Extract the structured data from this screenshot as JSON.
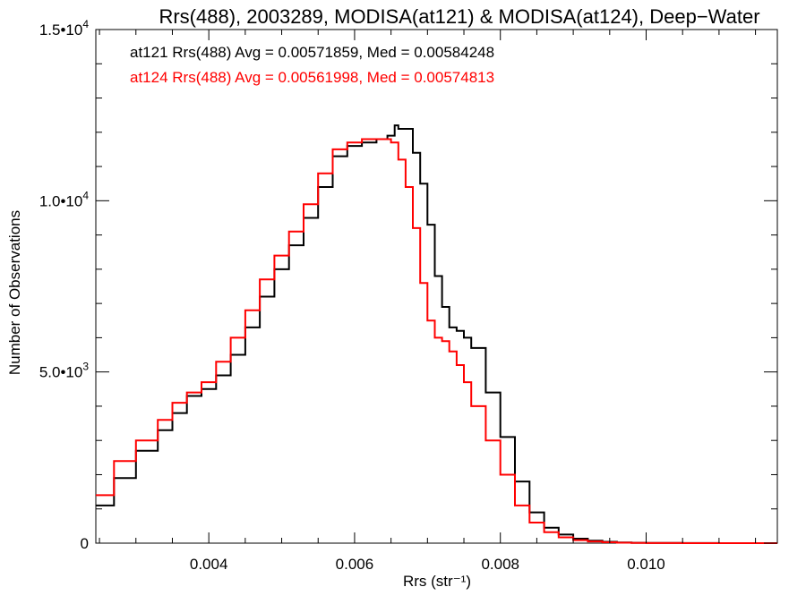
{
  "chart_data": {
    "type": "line",
    "title": "Rrs(488), 2003289, MODISA(at121) & MODISA(at124), Deep−Water",
    "xlabel": "Rrs (str⁻¹)",
    "ylabel": "Number of Observations",
    "xlim": [
      0.00245,
      0.0118
    ],
    "ylim": [
      0,
      15000
    ],
    "x_ticks": [
      {
        "value": 0.004,
        "label": "0.004"
      },
      {
        "value": 0.006,
        "label": "0.006"
      },
      {
        "value": 0.008,
        "label": "0.008"
      },
      {
        "value": 0.01,
        "label": "0.010"
      }
    ],
    "y_ticks": [
      {
        "value": 0,
        "mant": "0",
        "exp": ""
      },
      {
        "value": 5000,
        "mant": "5.0•10",
        "exp": "3"
      },
      {
        "value": 10000,
        "mant": "1.0•10",
        "exp": "4"
      },
      {
        "value": 15000,
        "mant": "1.5•10",
        "exp": "4"
      }
    ],
    "y_minor_ticks": [
      1000,
      2000,
      3000,
      4000,
      6000,
      7000,
      8000,
      9000,
      11000,
      12000,
      13000,
      14000
    ],
    "x_minor_ticks": [
      0.0025,
      0.003,
      0.0035,
      0.0045,
      0.005,
      0.0055,
      0.0065,
      0.007,
      0.0075,
      0.0085,
      0.009,
      0.0095,
      0.0105,
      0.011,
      0.0115
    ],
    "legend": [
      {
        "label": "at121 Rrs(488) Avg = 0.00571859, Med = 0.00584248",
        "color": "#000000"
      },
      {
        "label": "at124 Rrs(488) Avg = 0.00561998, Med = 0.00574813",
        "color": "#ff0000"
      }
    ],
    "series": [
      {
        "color": "#000000",
        "x": [
          0.00245,
          0.0027,
          0.003,
          0.0033,
          0.0035,
          0.0037,
          0.0039,
          0.0041,
          0.0043,
          0.0045,
          0.0047,
          0.0049,
          0.0051,
          0.0053,
          0.0055,
          0.0057,
          0.0059,
          0.0061,
          0.0063,
          0.00645,
          0.00655,
          0.0066,
          0.0068,
          0.0069,
          0.007,
          0.0071,
          0.0072,
          0.0073,
          0.0074,
          0.0075,
          0.0076,
          0.0078,
          0.008,
          0.0082,
          0.0084,
          0.0086,
          0.0088,
          0.009,
          0.0092,
          0.0094,
          0.0096,
          0.0098,
          0.01,
          0.0105,
          0.011,
          0.0118
        ],
        "y": [
          1100,
          1900,
          2700,
          3300,
          3800,
          4300,
          4500,
          4900,
          5500,
          6300,
          7200,
          8000,
          8700,
          9500,
          10400,
          11300,
          11600,
          11700,
          11800,
          11900,
          12200,
          12100,
          11400,
          10500,
          9300,
          7800,
          6900,
          6300,
          6200,
          6000,
          5700,
          4400,
          3100,
          1800,
          900,
          450,
          250,
          130,
          70,
          40,
          20,
          10,
          5,
          2,
          1,
          0
        ]
      },
      {
        "color": "#ff0000",
        "x": [
          0.00245,
          0.0027,
          0.003,
          0.0033,
          0.0035,
          0.0037,
          0.0039,
          0.0041,
          0.0043,
          0.0045,
          0.0047,
          0.0049,
          0.0051,
          0.0053,
          0.0055,
          0.0057,
          0.0059,
          0.0061,
          0.0063,
          0.0065,
          0.0066,
          0.0067,
          0.0068,
          0.0069,
          0.007,
          0.0071,
          0.0072,
          0.0073,
          0.0074,
          0.0075,
          0.0076,
          0.0078,
          0.008,
          0.0082,
          0.0084,
          0.0086,
          0.0088,
          0.009,
          0.0092,
          0.0094,
          0.0096,
          0.0098,
          0.01,
          0.0105,
          0.011,
          0.0118
        ],
        "y": [
          1400,
          2400,
          3000,
          3600,
          4100,
          4400,
          4700,
          5300,
          6000,
          6800,
          7700,
          8400,
          9100,
          9900,
          10800,
          11500,
          11700,
          11800,
          11800,
          11700,
          11200,
          10400,
          9200,
          7600,
          6500,
          6000,
          5900,
          5600,
          5200,
          4700,
          4000,
          3000,
          2000,
          1100,
          600,
          320,
          170,
          90,
          50,
          25,
          12,
          6,
          3,
          1,
          0,
          0
        ]
      }
    ]
  }
}
